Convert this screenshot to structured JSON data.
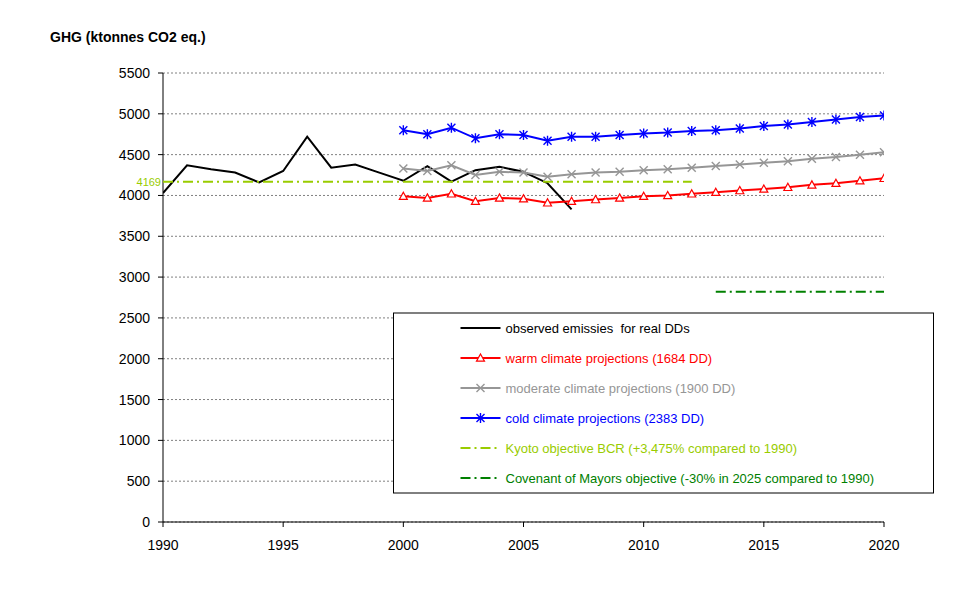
{
  "chart_data": {
    "type": "line",
    "y_label": "GHG (ktonnes CO2 eq.)",
    "x": [
      1990,
      1991,
      1992,
      1993,
      1994,
      1995,
      1996,
      1997,
      1998,
      1999,
      2000,
      2001,
      2002,
      2003,
      2004,
      2005,
      2006,
      2007,
      2008,
      2009,
      2010,
      2011,
      2012,
      2013,
      2014,
      2015,
      2016,
      2017,
      2018,
      2019,
      2020
    ],
    "xlim": [
      1990,
      2020
    ],
    "xticks": [
      1990,
      1995,
      2000,
      2005,
      2010,
      2015,
      2020
    ],
    "ylim": [
      0,
      5500
    ],
    "yticks": [
      0,
      500,
      1000,
      1500,
      2000,
      2500,
      3000,
      3500,
      4000,
      4500,
      5000,
      5500
    ],
    "grid": true,
    "legend": "bottom",
    "annotations": [
      {
        "text": "4169",
        "y": 4169,
        "color": "#99cc00"
      }
    ],
    "series": [
      {
        "name": "observed emissies  for real DDs",
        "color": "#000000",
        "marker": "none",
        "line_style": "solid",
        "values": [
          4030,
          4370,
          4320,
          4280,
          4160,
          4300,
          4720,
          4340,
          4380,
          4280,
          4180,
          4360,
          4170,
          4310,
          4350,
          4290,
          4150,
          3830,
          null,
          null,
          null,
          null,
          null,
          null,
          null,
          null,
          null,
          null,
          null,
          null,
          null
        ]
      },
      {
        "name": "warm climate projections (1684 DD)",
        "color": "#ff0000",
        "marker": "triangle",
        "line_style": "solid",
        "values": [
          null,
          null,
          null,
          null,
          null,
          null,
          null,
          null,
          null,
          null,
          3990,
          3970,
          4020,
          3930,
          3970,
          3960,
          3910,
          3930,
          3950,
          3970,
          3990,
          4000,
          4020,
          4040,
          4060,
          4080,
          4100,
          4130,
          4150,
          4180,
          4210
        ]
      },
      {
        "name": "moderate climate projections (1900 DD)",
        "color": "#969696",
        "marker": "x",
        "line_style": "solid",
        "values": [
          null,
          null,
          null,
          null,
          null,
          null,
          null,
          null,
          null,
          null,
          4330,
          4300,
          4370,
          4250,
          4290,
          4280,
          4230,
          4260,
          4280,
          4290,
          4310,
          4320,
          4340,
          4360,
          4380,
          4400,
          4420,
          4450,
          4470,
          4500,
          4530
        ]
      },
      {
        "name": "cold climate projections (2383 DD)",
        "color": "#0000ff",
        "marker": "asterisk",
        "line_style": "solid",
        "values": [
          null,
          null,
          null,
          null,
          null,
          null,
          null,
          null,
          null,
          null,
          4800,
          4750,
          4830,
          4700,
          4750,
          4740,
          4670,
          4720,
          4720,
          4740,
          4760,
          4770,
          4790,
          4800,
          4820,
          4850,
          4870,
          4900,
          4930,
          4960,
          4980
        ]
      },
      {
        "name": "Kyoto objective BCR (+3,475% compared to 1990)",
        "color": "#99cc00",
        "marker": "none",
        "line_style": "dashdot",
        "values": [
          4169,
          4169,
          4169,
          4169,
          4169,
          4169,
          4169,
          4169,
          4169,
          4169,
          4169,
          4169,
          4169,
          4169,
          4169,
          4169,
          4169,
          4169,
          4169,
          4169,
          4169,
          4169,
          4169,
          null,
          null,
          null,
          null,
          null,
          null,
          null,
          null
        ]
      },
      {
        "name": "Covenant of Mayors objective (-30% in 2025 compared to 1990)",
        "color": "#008000",
        "marker": "none",
        "line_style": "dashdot",
        "values": [
          null,
          null,
          null,
          null,
          null,
          null,
          null,
          null,
          null,
          null,
          null,
          null,
          null,
          null,
          null,
          null,
          null,
          null,
          null,
          null,
          null,
          null,
          null,
          2820,
          2820,
          2820,
          2820,
          2820,
          2820,
          2820,
          2820
        ]
      }
    ]
  }
}
